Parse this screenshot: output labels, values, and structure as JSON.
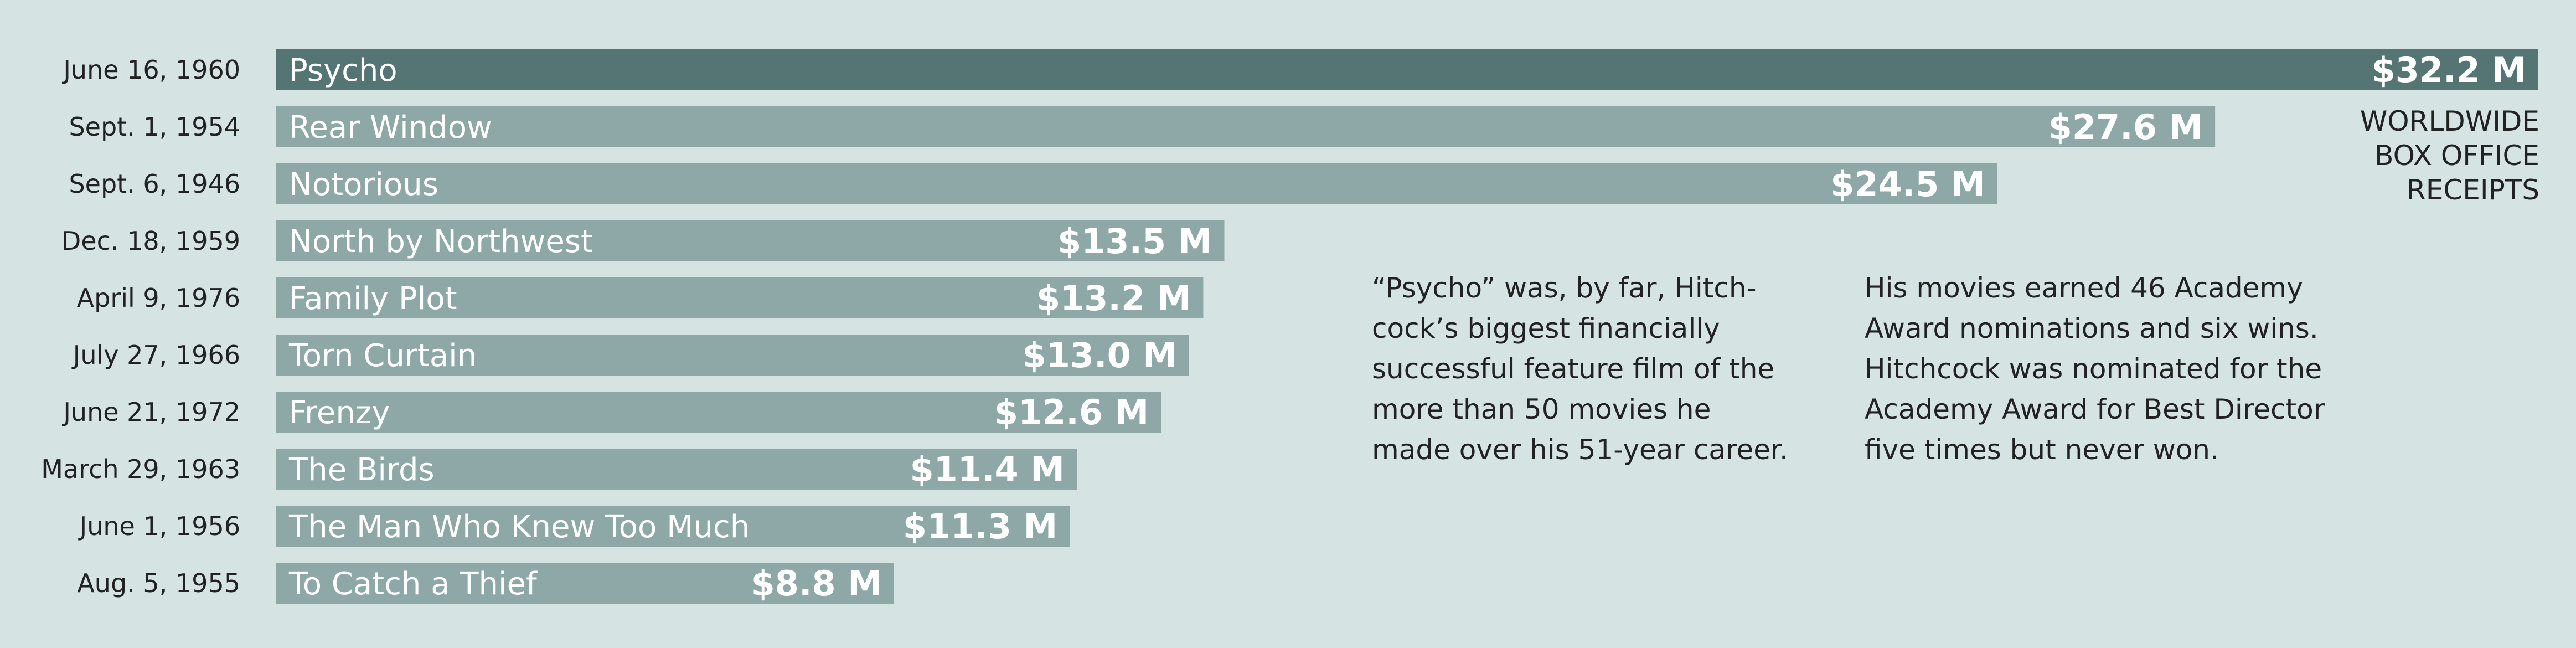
{
  "chart_data": {
    "type": "bar",
    "orientation": "horizontal",
    "categories": [
      "Psycho",
      "Rear Window",
      "Notorious",
      "North by Northwest",
      "Family Plot",
      "Torn Curtain",
      "Frenzy",
      "The Birds",
      "The Man Who Knew Too Much",
      "To Catch a Thief"
    ],
    "dates": [
      "June 16, 1960",
      "Sept. 1, 1954",
      "Sept. 6, 1946",
      "Dec. 18, 1959",
      "April 9, 1976",
      "July 27, 1966",
      "June 21, 1972",
      "March 29, 1963",
      "June 1, 1956",
      "Aug. 5, 1955"
    ],
    "values": [
      32.2,
      27.6,
      24.5,
      13.5,
      13.2,
      13.0,
      12.6,
      11.4,
      11.3,
      8.8
    ],
    "value_labels": [
      "$32.2 M",
      "$27.6 M",
      "$24.5 M",
      "$13.5 M",
      "$13.2 M",
      "$13.0 M",
      "$12.6 M",
      "$11.4 M",
      "$11.3 M",
      "$8.8 M"
    ],
    "highlight_index": 0,
    "xlim": [
      0,
      32.2
    ],
    "grid": false,
    "legend": [
      "WORLDWIDE",
      "BOX OFFICE",
      "RECEIPTS"
    ],
    "legend_placement": "right",
    "colors": {
      "background": "#d5e3e3",
      "bar": "#8ea8a8",
      "highlight_bar": "#557575",
      "bar_text": "#ffffff",
      "label_text": "#222222"
    }
  },
  "notes": {
    "note1": [
      "“Psycho” was, by far, Hitch-",
      "cock’s biggest financially",
      "successful feature film of the",
      "more than 50 movies he",
      "made over his 51-year career."
    ],
    "note2": [
      "His movies earned 46 Academy",
      "Award nominations and six wins.",
      "Hitchcock was nominated for the",
      "Academy Award for Best Director",
      "five times but never won."
    ]
  }
}
